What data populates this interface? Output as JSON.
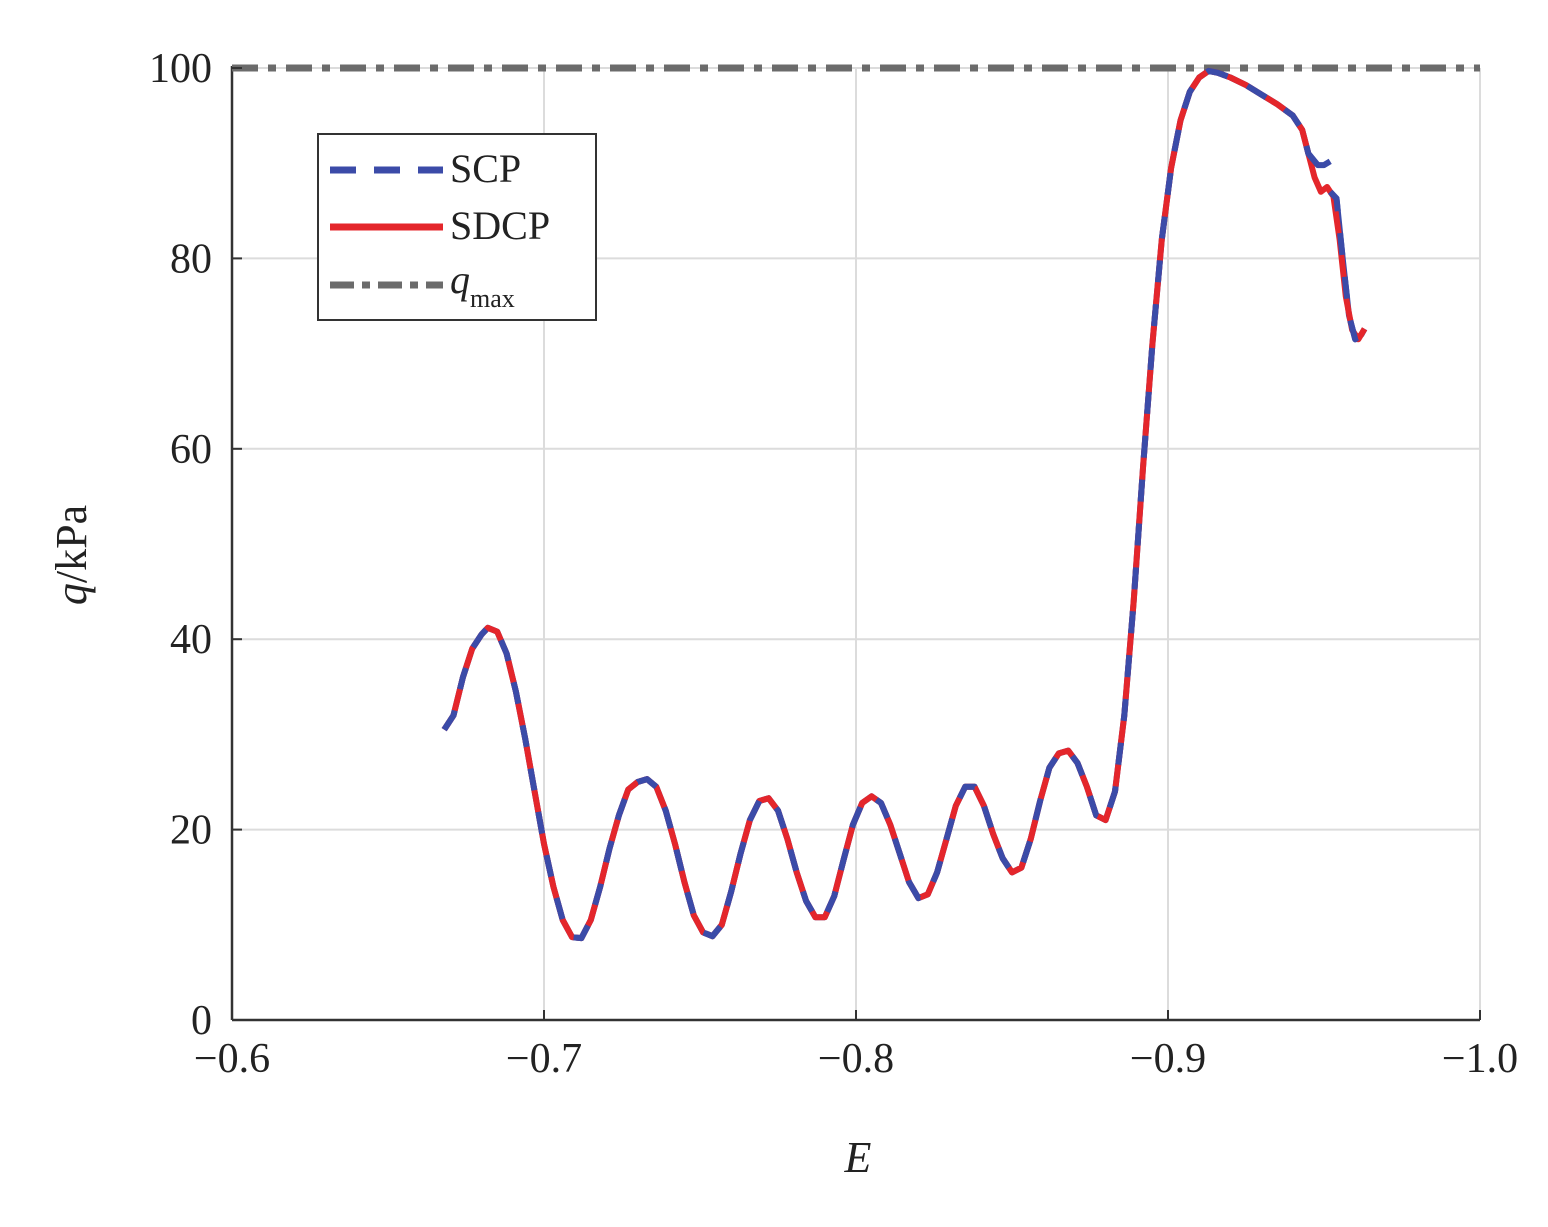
{
  "chart_data": {
    "type": "line",
    "xlabel": "E",
    "ylabel": "q",
    "ylabel_unit": "/kPa",
    "xlim": [
      -0.6,
      -1.0
    ],
    "ylim": [
      0,
      100
    ],
    "x_ticks": [
      -0.6,
      -0.7,
      -0.8,
      -0.9,
      -1.0
    ],
    "x_tick_labels": [
      "−0.6",
      "−0.7",
      "−0.8",
      "−0.9",
      "−1.0"
    ],
    "y_ticks": [
      0,
      20,
      40,
      60,
      80,
      100
    ],
    "y_tick_labels": [
      "0",
      "20",
      "40",
      "60",
      "80",
      "100"
    ],
    "grid": true,
    "legend_position": "top-left",
    "series": [
      {
        "name": "SCP",
        "color": "#3b4ba8",
        "style": "dashed",
        "points": [
          [
            -0.668,
            30.5
          ],
          [
            -0.671,
            32.0
          ],
          [
            -0.674,
            36.0
          ],
          [
            -0.677,
            39.0
          ],
          [
            -0.68,
            40.5
          ],
          [
            -0.682,
            41.2
          ],
          [
            -0.685,
            40.8
          ],
          [
            -0.688,
            38.5
          ],
          [
            -0.691,
            34.5
          ],
          [
            -0.694,
            29.5
          ],
          [
            -0.697,
            24.0
          ],
          [
            -0.7,
            18.5
          ],
          [
            -0.703,
            14.0
          ],
          [
            -0.706,
            10.5
          ],
          [
            -0.709,
            8.7
          ],
          [
            -0.712,
            8.6
          ],
          [
            -0.715,
            10.5
          ],
          [
            -0.718,
            14.0
          ],
          [
            -0.721,
            18.0
          ],
          [
            -0.724,
            21.5
          ],
          [
            -0.727,
            24.2
          ],
          [
            -0.73,
            25.0
          ],
          [
            -0.733,
            25.3
          ],
          [
            -0.736,
            24.5
          ],
          [
            -0.739,
            22.0
          ],
          [
            -0.742,
            18.5
          ],
          [
            -0.745,
            14.5
          ],
          [
            -0.748,
            11.0
          ],
          [
            -0.751,
            9.2
          ],
          [
            -0.754,
            8.8
          ],
          [
            -0.757,
            10.0
          ],
          [
            -0.76,
            13.5
          ],
          [
            -0.763,
            17.5
          ],
          [
            -0.766,
            21.0
          ],
          [
            -0.769,
            23.0
          ],
          [
            -0.772,
            23.3
          ],
          [
            -0.775,
            22.0
          ],
          [
            -0.778,
            19.0
          ],
          [
            -0.781,
            15.5
          ],
          [
            -0.784,
            12.5
          ],
          [
            -0.787,
            10.8
          ],
          [
            -0.79,
            10.8
          ],
          [
            -0.793,
            13.0
          ],
          [
            -0.796,
            16.8
          ],
          [
            -0.799,
            20.5
          ],
          [
            -0.802,
            22.8
          ],
          [
            -0.805,
            23.5
          ],
          [
            -0.808,
            22.8
          ],
          [
            -0.811,
            20.5
          ],
          [
            -0.814,
            17.5
          ],
          [
            -0.817,
            14.5
          ],
          [
            -0.82,
            12.8
          ],
          [
            -0.823,
            13.2
          ],
          [
            -0.826,
            15.5
          ],
          [
            -0.829,
            19.0
          ],
          [
            -0.832,
            22.5
          ],
          [
            -0.835,
            24.5
          ],
          [
            -0.838,
            24.5
          ],
          [
            -0.841,
            22.5
          ],
          [
            -0.844,
            19.5
          ],
          [
            -0.847,
            17.0
          ],
          [
            -0.85,
            15.5
          ],
          [
            -0.853,
            16.0
          ],
          [
            -0.856,
            19.0
          ],
          [
            -0.859,
            23.0
          ],
          [
            -0.862,
            26.5
          ],
          [
            -0.865,
            28.0
          ],
          [
            -0.868,
            28.3
          ],
          [
            -0.871,
            27.0
          ],
          [
            -0.874,
            24.5
          ],
          [
            -0.877,
            21.5
          ],
          [
            -0.88,
            21.0
          ],
          [
            -0.883,
            24.0
          ],
          [
            -0.886,
            32.0
          ],
          [
            -0.889,
            44.0
          ],
          [
            -0.892,
            58.0
          ],
          [
            -0.895,
            71.0
          ],
          [
            -0.898,
            82.0
          ],
          [
            -0.901,
            89.5
          ],
          [
            -0.904,
            94.5
          ],
          [
            -0.907,
            97.5
          ],
          [
            -0.91,
            99.0
          ],
          [
            -0.913,
            99.7
          ],
          [
            -0.916,
            99.5
          ],
          [
            -0.92,
            99.0
          ],
          [
            -0.925,
            98.2
          ],
          [
            -0.93,
            97.2
          ],
          [
            -0.935,
            96.2
          ],
          [
            -0.94,
            95.0
          ],
          [
            -0.943,
            93.5
          ],
          [
            -0.945,
            91.0
          ],
          [
            -0.948,
            89.8
          ],
          [
            -0.95,
            89.8
          ],
          [
            -0.952,
            90.2
          ]
        ],
        "tail_points": [
          [
            -0.952,
            87.0
          ],
          [
            -0.954,
            86.3
          ],
          [
            -0.956,
            80.0
          ],
          [
            -0.958,
            74.0
          ],
          [
            -0.96,
            71.5
          ],
          [
            -0.962,
            72.0
          ],
          [
            -0.963,
            72.6
          ]
        ]
      },
      {
        "name": "SDCP",
        "color": "#e4262b",
        "style": "solid",
        "points": [
          [
            -0.668,
            30.5
          ],
          [
            -0.671,
            32.0
          ],
          [
            -0.674,
            36.0
          ],
          [
            -0.677,
            39.0
          ],
          [
            -0.68,
            40.5
          ],
          [
            -0.682,
            41.2
          ],
          [
            -0.685,
            40.8
          ],
          [
            -0.688,
            38.5
          ],
          [
            -0.691,
            34.5
          ],
          [
            -0.694,
            29.5
          ],
          [
            -0.697,
            24.0
          ],
          [
            -0.7,
            18.5
          ],
          [
            -0.703,
            14.0
          ],
          [
            -0.706,
            10.5
          ],
          [
            -0.709,
            8.7
          ],
          [
            -0.712,
            8.6
          ],
          [
            -0.715,
            10.5
          ],
          [
            -0.718,
            14.0
          ],
          [
            -0.721,
            18.0
          ],
          [
            -0.724,
            21.5
          ],
          [
            -0.727,
            24.2
          ],
          [
            -0.73,
            25.0
          ],
          [
            -0.733,
            25.3
          ],
          [
            -0.736,
            24.5
          ],
          [
            -0.739,
            22.0
          ],
          [
            -0.742,
            18.5
          ],
          [
            -0.745,
            14.5
          ],
          [
            -0.748,
            11.0
          ],
          [
            -0.751,
            9.2
          ],
          [
            -0.754,
            8.8
          ],
          [
            -0.757,
            10.0
          ],
          [
            -0.76,
            13.5
          ],
          [
            -0.763,
            17.5
          ],
          [
            -0.766,
            21.0
          ],
          [
            -0.769,
            23.0
          ],
          [
            -0.772,
            23.3
          ],
          [
            -0.775,
            22.0
          ],
          [
            -0.778,
            19.0
          ],
          [
            -0.781,
            15.5
          ],
          [
            -0.784,
            12.5
          ],
          [
            -0.787,
            10.8
          ],
          [
            -0.79,
            10.8
          ],
          [
            -0.793,
            13.0
          ],
          [
            -0.796,
            16.8
          ],
          [
            -0.799,
            20.5
          ],
          [
            -0.802,
            22.8
          ],
          [
            -0.805,
            23.5
          ],
          [
            -0.808,
            22.8
          ],
          [
            -0.811,
            20.5
          ],
          [
            -0.814,
            17.5
          ],
          [
            -0.817,
            14.5
          ],
          [
            -0.82,
            12.8
          ],
          [
            -0.823,
            13.2
          ],
          [
            -0.826,
            15.5
          ],
          [
            -0.829,
            19.0
          ],
          [
            -0.832,
            22.5
          ],
          [
            -0.835,
            24.5
          ],
          [
            -0.838,
            24.5
          ],
          [
            -0.841,
            22.5
          ],
          [
            -0.844,
            19.5
          ],
          [
            -0.847,
            17.0
          ],
          [
            -0.85,
            15.5
          ],
          [
            -0.853,
            16.0
          ],
          [
            -0.856,
            19.0
          ],
          [
            -0.859,
            23.0
          ],
          [
            -0.862,
            26.5
          ],
          [
            -0.865,
            28.0
          ],
          [
            -0.868,
            28.3
          ],
          [
            -0.871,
            27.0
          ],
          [
            -0.874,
            24.5
          ],
          [
            -0.877,
            21.5
          ],
          [
            -0.88,
            21.0
          ],
          [
            -0.883,
            24.0
          ],
          [
            -0.886,
            32.0
          ],
          [
            -0.889,
            44.0
          ],
          [
            -0.892,
            58.0
          ],
          [
            -0.895,
            71.0
          ],
          [
            -0.898,
            82.0
          ],
          [
            -0.901,
            89.5
          ],
          [
            -0.904,
            94.5
          ],
          [
            -0.907,
            97.5
          ],
          [
            -0.91,
            99.0
          ],
          [
            -0.913,
            99.7
          ],
          [
            -0.916,
            99.5
          ],
          [
            -0.92,
            99.0
          ],
          [
            -0.925,
            98.2
          ],
          [
            -0.93,
            97.2
          ],
          [
            -0.935,
            96.2
          ],
          [
            -0.94,
            95.0
          ],
          [
            -0.943,
            93.5
          ],
          [
            -0.945,
            91.0
          ],
          [
            -0.947,
            88.5
          ],
          [
            -0.949,
            87.0
          ],
          [
            -0.951,
            87.5
          ],
          [
            -0.953,
            86.5
          ],
          [
            -0.955,
            82.0
          ],
          [
            -0.957,
            76.0
          ],
          [
            -0.959,
            72.5
          ],
          [
            -0.961,
            71.5
          ],
          [
            -0.963,
            72.6
          ]
        ]
      },
      {
        "name": "q_max",
        "legend_label_main": "q",
        "legend_label_sub": "max",
        "color": "#6b6b6b",
        "style": "dashdot",
        "constant_y": 100
      }
    ]
  }
}
